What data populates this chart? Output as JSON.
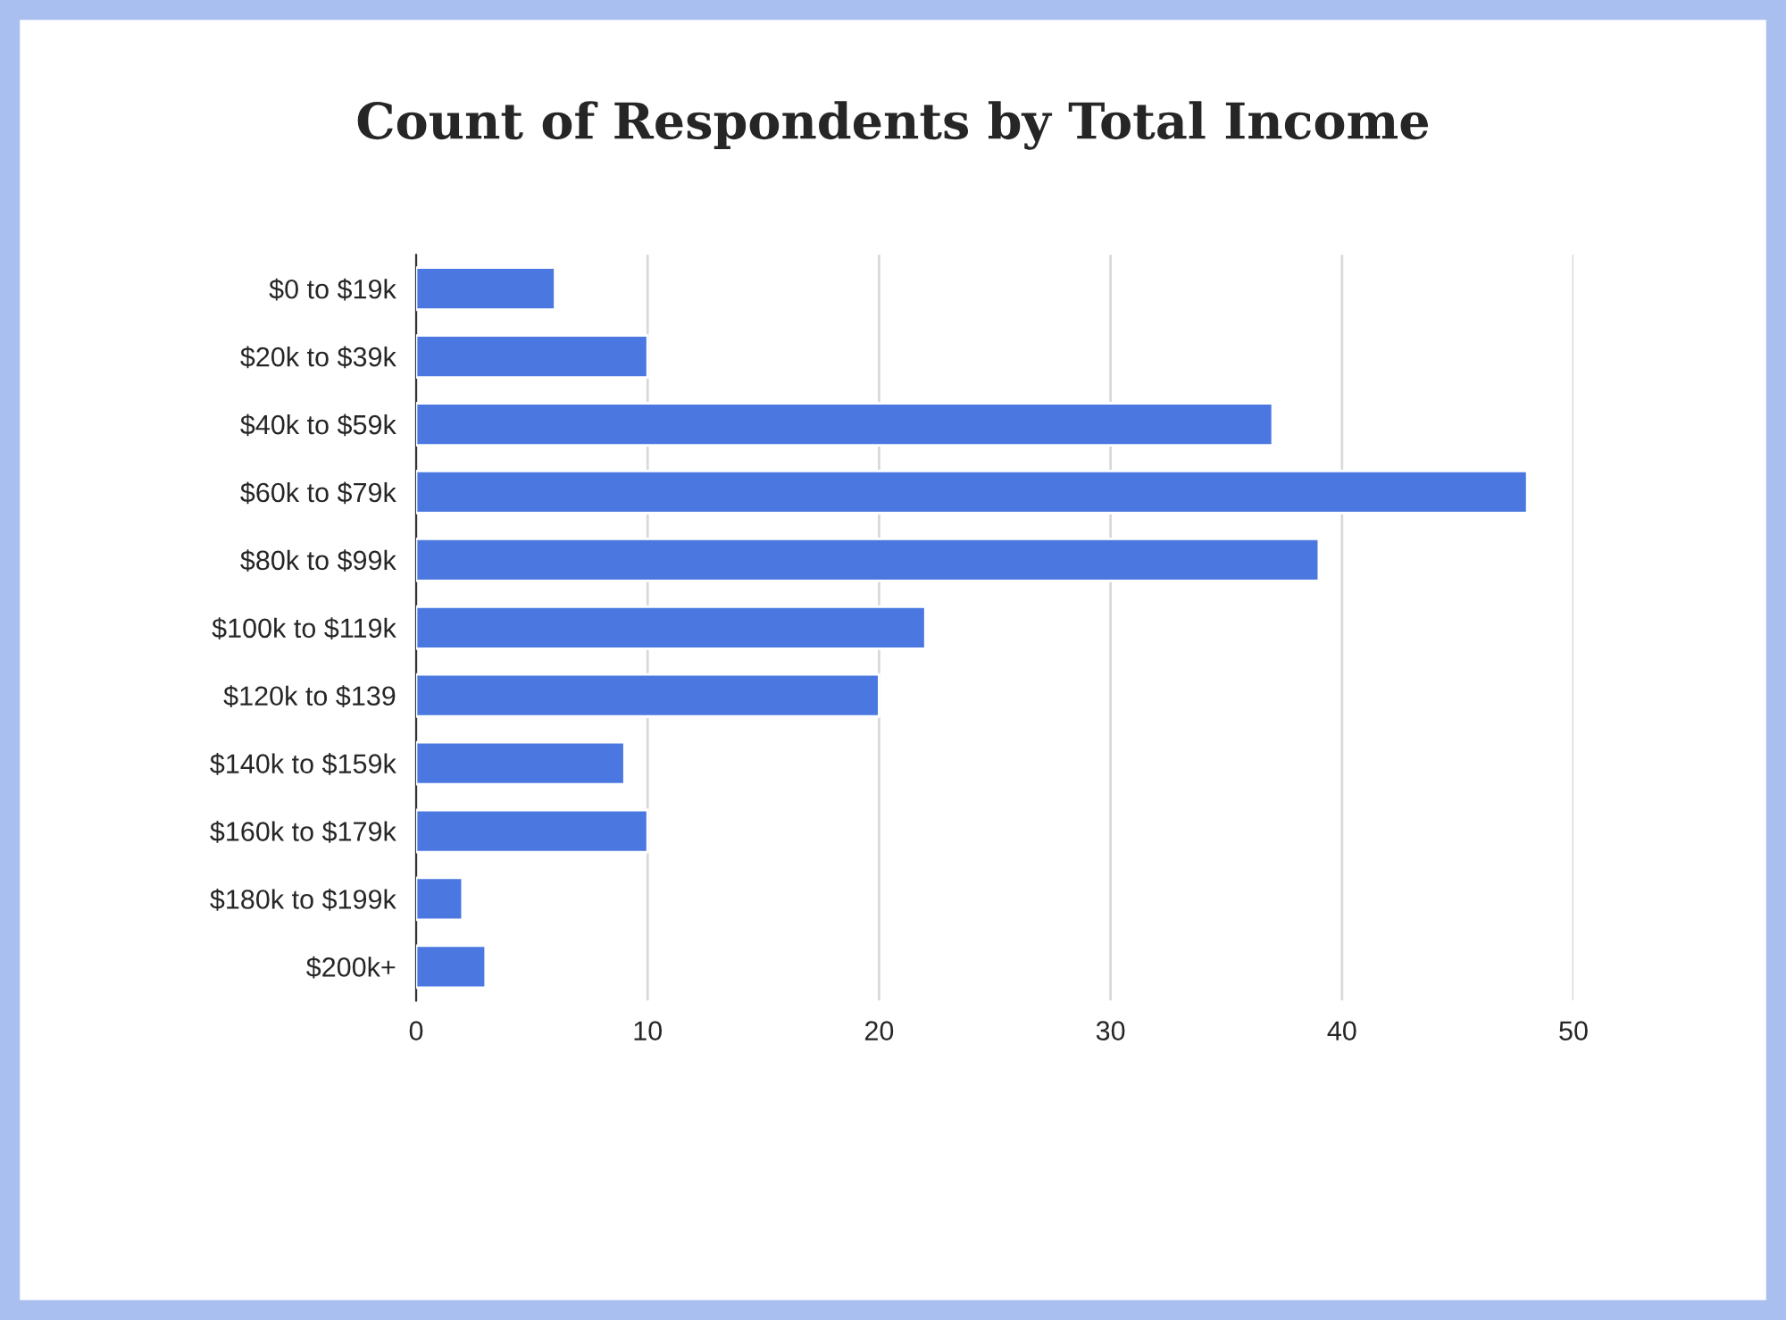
{
  "chart_data": {
    "type": "bar",
    "orientation": "horizontal",
    "title": "Count of Respondents by Total Income",
    "categories": [
      "$0 to $19k",
      "$20k to $39k",
      "$40k to $59k",
      "$60k to $79k",
      "$80k to $99k",
      "$100k to $119k",
      "$120k to $139",
      "$140k to $159k",
      "$160k to $179k",
      "$180k to $199k",
      "$200k+"
    ],
    "values": [
      6,
      10,
      37,
      48,
      39,
      22,
      20,
      9,
      10,
      2,
      3
    ],
    "color": "#4a78e0",
    "xlim": [
      0,
      50
    ],
    "xticks": [
      0,
      10,
      20,
      30,
      40,
      50
    ],
    "grid": "x",
    "legend": false
  }
}
